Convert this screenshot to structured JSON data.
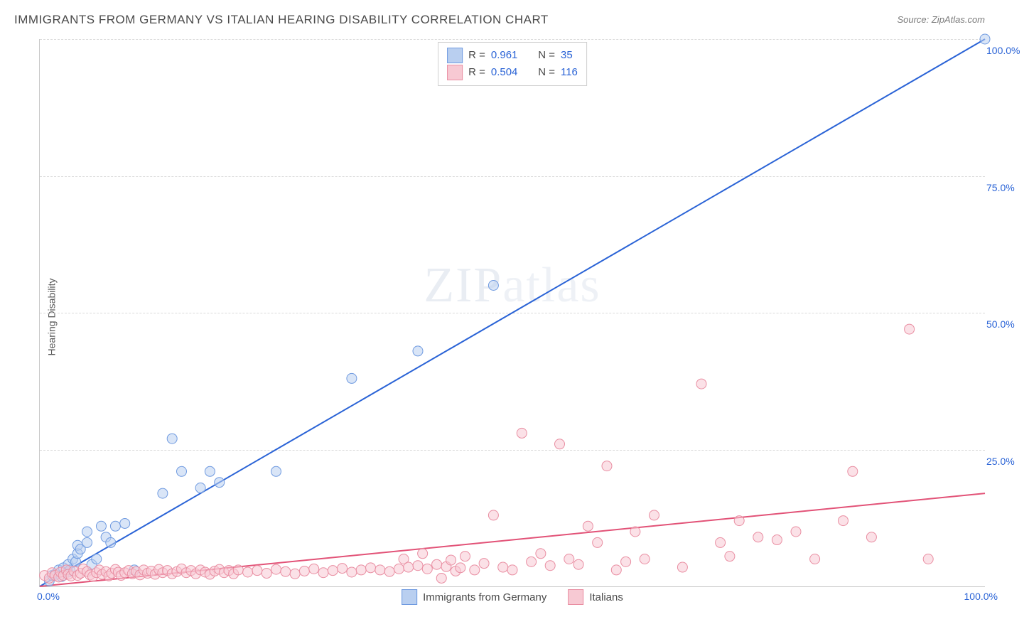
{
  "title": "IMMIGRANTS FROM GERMANY VS ITALIAN HEARING DISABILITY CORRELATION CHART",
  "source": "Source: ZipAtlas.com",
  "yaxis_label": "Hearing Disability",
  "watermark": "ZIPatlas",
  "plot": {
    "type": "scatter",
    "xlim": [
      0,
      100
    ],
    "ylim": [
      0,
      100
    ],
    "grid_dash": true,
    "grid_color": "#dadada",
    "axis_color": "#c9c9c9",
    "yticks": [
      {
        "v": 25,
        "label": "25.0%"
      },
      {
        "v": 50,
        "label": "50.0%"
      },
      {
        "v": 75,
        "label": "75.0%"
      },
      {
        "v": 100,
        "label": "100.0%"
      }
    ],
    "xtick_left": "0.0%",
    "xtick_right": "100.0%",
    "marker_radius": 7,
    "marker_stroke_width": 1,
    "line_width": 2,
    "series": [
      {
        "key": "germany",
        "label": "Immigrants from Germany",
        "fill": "#b9cff0",
        "stroke": "#6f9ae0",
        "line_color": "#2a63d6",
        "R": "0.961",
        "N": "35",
        "trend": {
          "x1": 0,
          "y1": 0,
          "x2": 100,
          "y2": 100
        },
        "points": [
          [
            1,
            1
          ],
          [
            1.3,
            2
          ],
          [
            1.6,
            2.2
          ],
          [
            2,
            3
          ],
          [
            2.3,
            1.8
          ],
          [
            2.5,
            3.4
          ],
          [
            3,
            2.6
          ],
          [
            3,
            4
          ],
          [
            3.2,
            3
          ],
          [
            3.5,
            5
          ],
          [
            3.8,
            4.5
          ],
          [
            4,
            6
          ],
          [
            4,
            7.5
          ],
          [
            4.3,
            6.8
          ],
          [
            5,
            8
          ],
          [
            5,
            10
          ],
          [
            5.5,
            4
          ],
          [
            6,
            5
          ],
          [
            6.5,
            11
          ],
          [
            7,
            9
          ],
          [
            7.5,
            8
          ],
          [
            8,
            11
          ],
          [
            9,
            11.5
          ],
          [
            10,
            3
          ],
          [
            13,
            17
          ],
          [
            14,
            27
          ],
          [
            15,
            21
          ],
          [
            17,
            18
          ],
          [
            18,
            21
          ],
          [
            19,
            19
          ],
          [
            25,
            21
          ],
          [
            33,
            38
          ],
          [
            40,
            43
          ],
          [
            48,
            55
          ],
          [
            100,
            100
          ]
        ]
      },
      {
        "key": "italians",
        "label": "Italians",
        "fill": "#f7c9d3",
        "stroke": "#e98ea2",
        "line_color": "#e25277",
        "R": "0.504",
        "N": "116",
        "trend": {
          "x1": 0,
          "y1": 0,
          "x2": 100,
          "y2": 17
        },
        "points": [
          [
            0.5,
            2
          ],
          [
            1,
            1.5
          ],
          [
            1.3,
            2.5
          ],
          [
            1.6,
            2
          ],
          [
            2,
            1.7
          ],
          [
            2.2,
            2.6
          ],
          [
            2.5,
            2
          ],
          [
            2.8,
            3
          ],
          [
            3,
            2.2
          ],
          [
            3.3,
            1.9
          ],
          [
            3.6,
            2.8
          ],
          [
            4,
            2
          ],
          [
            4.3,
            2.4
          ],
          [
            4.6,
            3.2
          ],
          [
            5,
            2.7
          ],
          [
            5.3,
            2.1
          ],
          [
            5.6,
            1.8
          ],
          [
            6,
            2.5
          ],
          [
            6.3,
            3
          ],
          [
            6.6,
            2.2
          ],
          [
            7,
            2.7
          ],
          [
            7.3,
            1.9
          ],
          [
            7.6,
            2.4
          ],
          [
            8,
            3.1
          ],
          [
            8.3,
            2.6
          ],
          [
            8.6,
            2
          ],
          [
            9,
            2.5
          ],
          [
            9.4,
            2.9
          ],
          [
            9.8,
            2.3
          ],
          [
            10.2,
            2.7
          ],
          [
            10.6,
            2.1
          ],
          [
            11,
            3
          ],
          [
            11.4,
            2.4
          ],
          [
            11.8,
            2.8
          ],
          [
            12.2,
            2.2
          ],
          [
            12.6,
            3.1
          ],
          [
            13,
            2.5
          ],
          [
            13.5,
            2.9
          ],
          [
            14,
            2.3
          ],
          [
            14.5,
            2.7
          ],
          [
            15,
            3.2
          ],
          [
            15.5,
            2.5
          ],
          [
            16,
            2.9
          ],
          [
            16.5,
            2.3
          ],
          [
            17,
            3
          ],
          [
            17.5,
            2.6
          ],
          [
            18,
            2.2
          ],
          [
            18.5,
            2.8
          ],
          [
            19,
            3.1
          ],
          [
            19.5,
            2.5
          ],
          [
            20,
            2.9
          ],
          [
            20.5,
            2.3
          ],
          [
            21,
            3
          ],
          [
            22,
            2.6
          ],
          [
            23,
            2.9
          ],
          [
            24,
            2.4
          ],
          [
            25,
            3.1
          ],
          [
            26,
            2.7
          ],
          [
            27,
            2.3
          ],
          [
            28,
            2.8
          ],
          [
            29,
            3.2
          ],
          [
            30,
            2.5
          ],
          [
            31,
            2.9
          ],
          [
            32,
            3.3
          ],
          [
            33,
            2.6
          ],
          [
            34,
            3
          ],
          [
            35,
            3.4
          ],
          [
            36,
            3
          ],
          [
            37,
            2.7
          ],
          [
            38,
            3.2
          ],
          [
            38.5,
            5
          ],
          [
            39,
            3.5
          ],
          [
            40,
            3.8
          ],
          [
            40.5,
            6
          ],
          [
            41,
            3.2
          ],
          [
            42,
            4
          ],
          [
            42.5,
            1.5
          ],
          [
            43,
            3.6
          ],
          [
            43.5,
            4.8
          ],
          [
            44,
            2.8
          ],
          [
            44.5,
            3.4
          ],
          [
            45,
            5.5
          ],
          [
            46,
            3
          ],
          [
            47,
            4.2
          ],
          [
            48,
            13
          ],
          [
            49,
            3.5
          ],
          [
            50,
            3
          ],
          [
            51,
            28
          ],
          [
            52,
            4.5
          ],
          [
            53,
            6
          ],
          [
            54,
            3.8
          ],
          [
            55,
            26
          ],
          [
            56,
            5
          ],
          [
            57,
            4
          ],
          [
            58,
            11
          ],
          [
            59,
            8
          ],
          [
            60,
            22
          ],
          [
            61,
            3
          ],
          [
            62,
            4.5
          ],
          [
            63,
            10
          ],
          [
            64,
            5
          ],
          [
            65,
            13
          ],
          [
            68,
            3.5
          ],
          [
            70,
            37
          ],
          [
            72,
            8
          ],
          [
            73,
            5.5
          ],
          [
            74,
            12
          ],
          [
            76,
            9
          ],
          [
            78,
            8.5
          ],
          [
            80,
            10
          ],
          [
            82,
            5
          ],
          [
            85,
            12
          ],
          [
            86,
            21
          ],
          [
            88,
            9
          ],
          [
            92,
            47
          ],
          [
            94,
            5
          ]
        ]
      }
    ]
  },
  "legend_top": {
    "rows": [
      {
        "series": "germany",
        "R_label": "R = ",
        "N_label": "N = "
      },
      {
        "series": "italians",
        "R_label": "R = ",
        "N_label": "N = "
      }
    ]
  },
  "label_color": "#2a63d6",
  "text_color": "#4a4a4a"
}
